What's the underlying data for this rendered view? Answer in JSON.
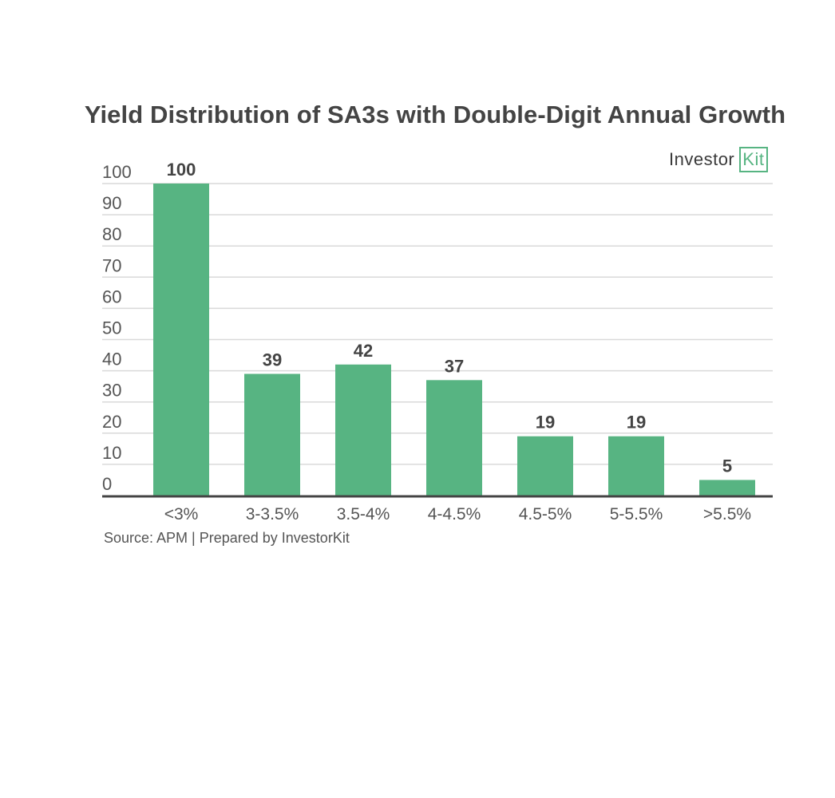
{
  "chart_data": {
    "type": "bar",
    "title": "Yield Distribution of SA3s with Double-Digit Annual Growth",
    "categories": [
      "<3%",
      "3-3.5%",
      "3.5-4%",
      "4-4.5%",
      "4.5-5%",
      "5-5.5%",
      ">5.5%"
    ],
    "values": [
      100,
      39,
      42,
      37,
      19,
      19,
      5
    ],
    "ylim": [
      0,
      100
    ],
    "yticks": [
      0,
      10,
      20,
      30,
      40,
      50,
      60,
      70,
      80,
      90,
      100
    ],
    "xlabel": "",
    "ylabel": "",
    "grid": true,
    "bar_color": "#57b482"
  },
  "source_note": "Source: APM | Prepared by InvestorKit",
  "logo": {
    "text": "Investor",
    "boxed_text": "Kit"
  }
}
